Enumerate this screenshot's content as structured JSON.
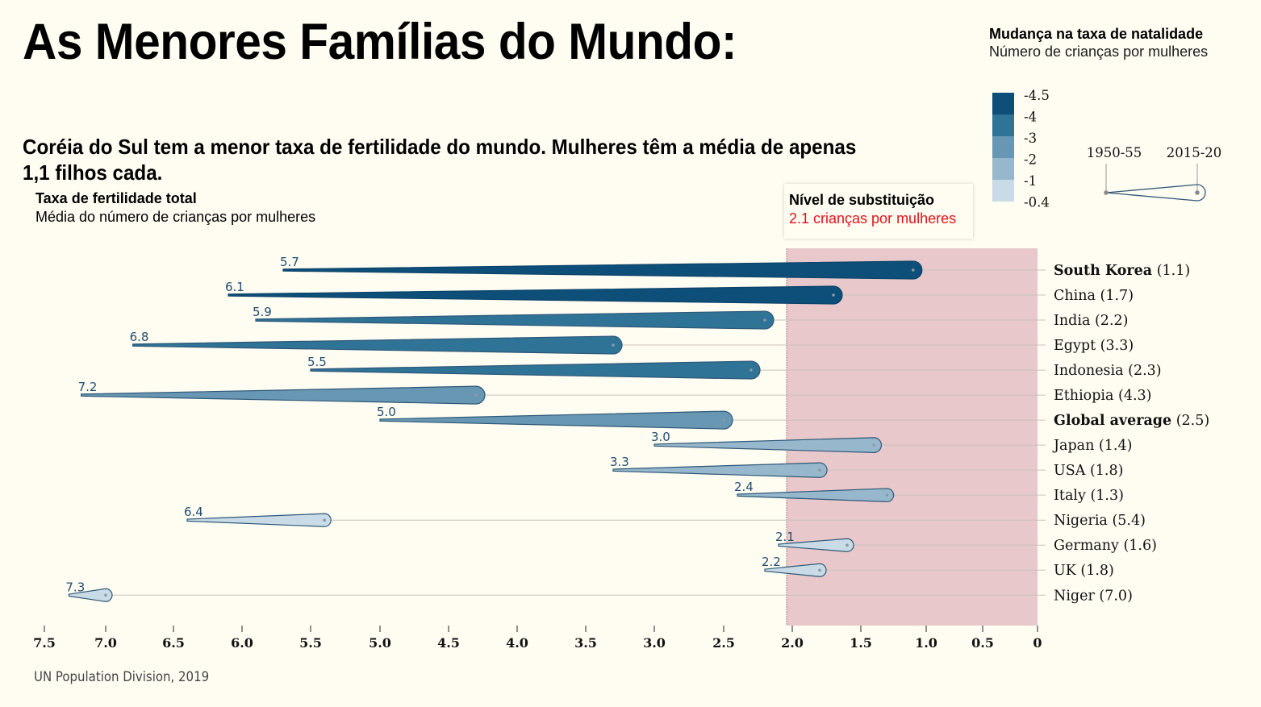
{
  "title": "As Menores Famílias do Mundo:",
  "subtitle": "Coréia do Sul tem a menor taxa de fertilidade do mundo. Mulheres têm a média de apenas 1,1 filhos cada.",
  "axis_heading": {
    "title": "Taxa de fertilidade total",
    "subtitle": "Média do número de crianças por mulheres"
  },
  "legend": {
    "title": "Mudança na taxa de natalidade",
    "subtitle": "Número de crianças por mulheres",
    "scale": [
      {
        "label": "-4.5",
        "color": "#0d4f79"
      },
      {
        "label": "-4",
        "color": "#2f7396"
      },
      {
        "label": "-3",
        "color": "#6797b3"
      },
      {
        "label": "-2",
        "color": "#97b8cc"
      },
      {
        "label": "-1",
        "color": "#c9dbe6"
      },
      {
        "label": "-0.4",
        "color": ""
      }
    ],
    "shape_start_label": "1950-55",
    "shape_end_label": "2015-20"
  },
  "callout": {
    "title": "Nível de substituição",
    "subtitle": "2.1 crianças por mulheres"
  },
  "source": "UN Population Division, 2019",
  "chart_data": {
    "type": "bar",
    "subtype": "tapered-range (1950-55 to 2015-20)",
    "title": "Taxa de fertilidade total",
    "xlabel": "Média do número de crianças por mulheres",
    "xlim": [
      7.5,
      0
    ],
    "x_reversed": true,
    "xticks": [
      "7.5",
      "7.0",
      "6.5",
      "6.0",
      "5.5",
      "5.0",
      "4.5",
      "4.0",
      "3.5",
      "3.0",
      "2.5",
      "2.0",
      "1.5",
      "1.0",
      "0.5",
      "0"
    ],
    "replacement_band": {
      "from": 2.1,
      "to": 0,
      "label": "Nível de substituição",
      "value_label": "2.1 crianças por mulheres"
    },
    "series": [
      {
        "name": "South Korea",
        "bold": true,
        "start": 5.7,
        "end": 1.1
      },
      {
        "name": "China",
        "bold": false,
        "start": 6.1,
        "end": 1.7
      },
      {
        "name": "India",
        "bold": false,
        "start": 5.9,
        "end": 2.2
      },
      {
        "name": "Egypt",
        "bold": false,
        "start": 6.8,
        "end": 3.3
      },
      {
        "name": "Indonesia",
        "bold": false,
        "start": 5.5,
        "end": 2.3
      },
      {
        "name": "Ethiopia",
        "bold": false,
        "start": 7.2,
        "end": 4.3
      },
      {
        "name": "Global average",
        "bold": true,
        "start": 5.0,
        "end": 2.5
      },
      {
        "name": "Japan",
        "bold": false,
        "start": 3.0,
        "end": 1.4
      },
      {
        "name": "USA",
        "bold": false,
        "start": 3.3,
        "end": 1.8
      },
      {
        "name": "Italy",
        "bold": false,
        "start": 2.4,
        "end": 1.3
      },
      {
        "name": "Nigeria",
        "bold": false,
        "start": 6.4,
        "end": 5.4
      },
      {
        "name": "Germany",
        "bold": false,
        "start": 2.1,
        "end": 1.6
      },
      {
        "name": "UK",
        "bold": false,
        "start": 2.2,
        "end": 1.8
      },
      {
        "name": "Niger",
        "bold": false,
        "start": 7.3,
        "end": 7.0
      }
    ]
  }
}
